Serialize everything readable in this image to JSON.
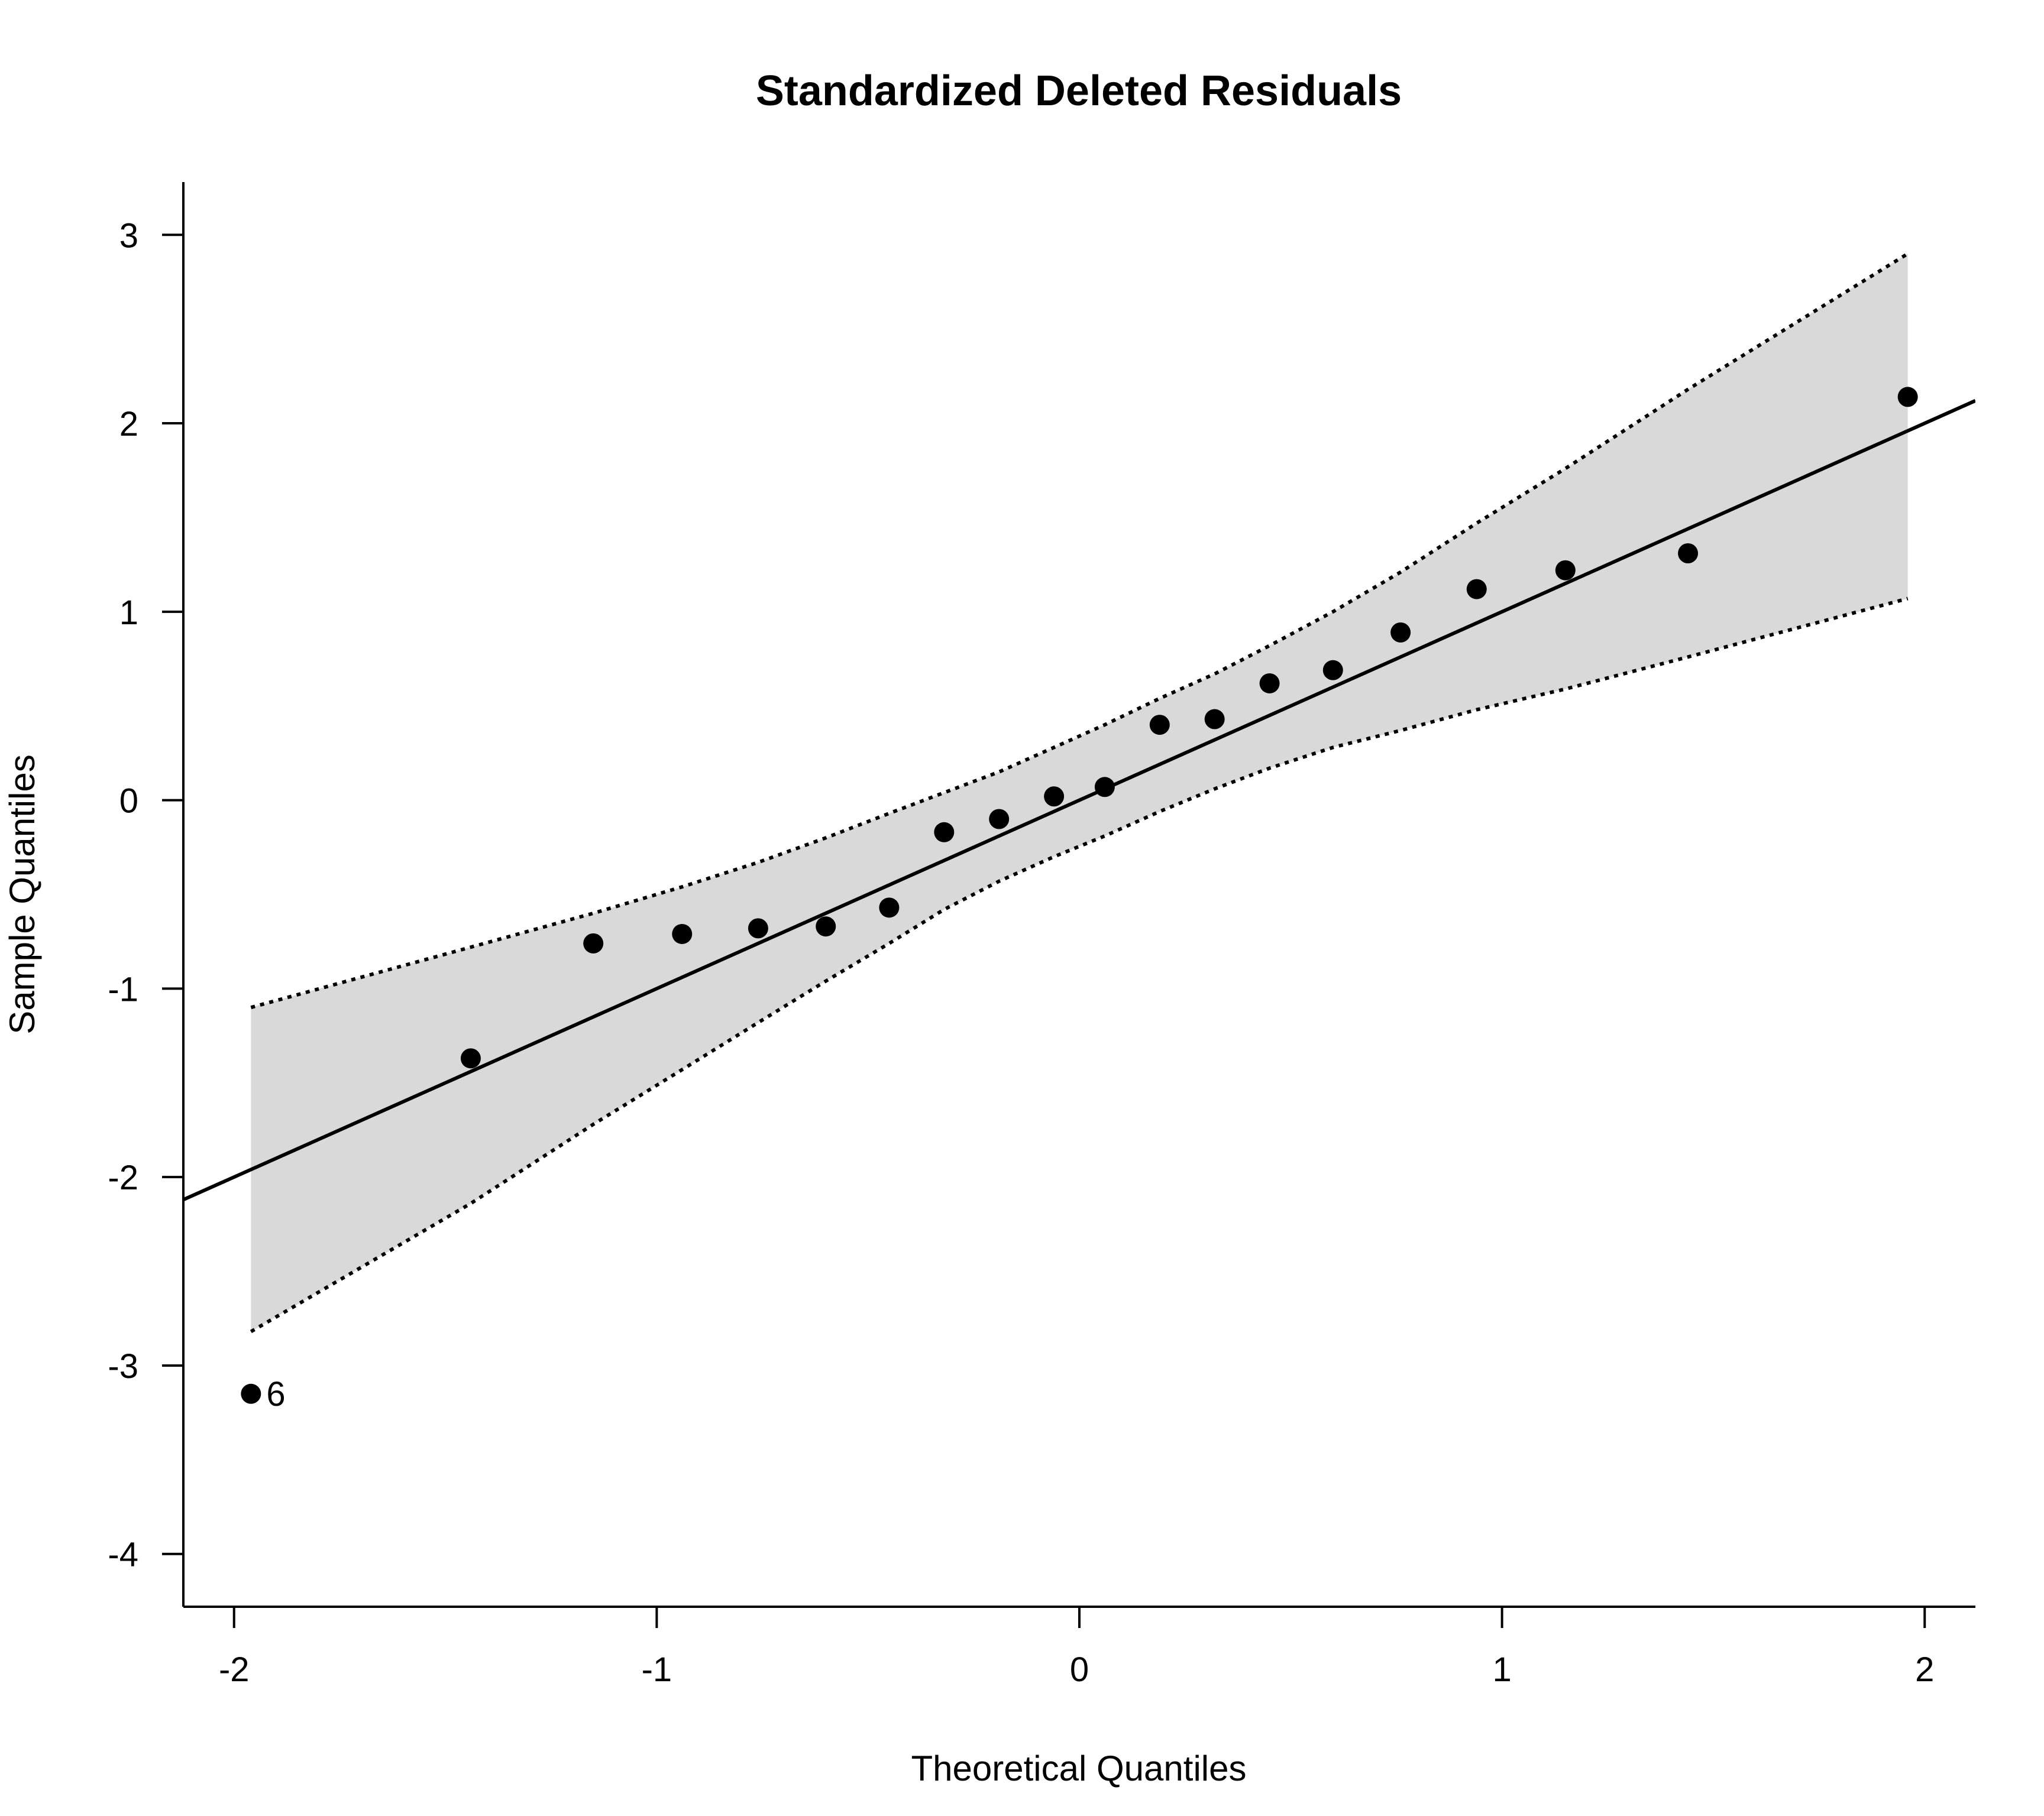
{
  "chart_data": {
    "type": "scatter",
    "title": "Standardized Deleted Residuals",
    "xlabel": "Theoretical Quantiles",
    "ylabel": "Sample Quantiles",
    "xlim": [
      -2.12,
      2.12
    ],
    "ylim": [
      -4.28,
      3.28
    ],
    "x_ticks": [
      -2,
      -1,
      0,
      1,
      2
    ],
    "x_tick_labels": [
      "-2",
      "-1",
      "0",
      "1",
      "2"
    ],
    "y_ticks": [
      -4,
      -3,
      -2,
      -1,
      0,
      1,
      2,
      3
    ],
    "y_tick_labels": [
      "-4",
      "-3",
      "-2",
      "-1",
      "0",
      "1",
      "2",
      "3"
    ],
    "grid": false,
    "points": [
      {
        "x": -1.96,
        "y": -3.15,
        "label": "6"
      },
      {
        "x": -1.44,
        "y": -1.37
      },
      {
        "x": -1.15,
        "y": -0.76
      },
      {
        "x": -0.94,
        "y": -0.71
      },
      {
        "x": -0.76,
        "y": -0.68
      },
      {
        "x": -0.6,
        "y": -0.67
      },
      {
        "x": -0.45,
        "y": -0.57
      },
      {
        "x": -0.32,
        "y": -0.17
      },
      {
        "x": -0.19,
        "y": -0.1
      },
      {
        "x": -0.06,
        "y": 0.02
      },
      {
        "x": 0.06,
        "y": 0.07
      },
      {
        "x": 0.19,
        "y": 0.4
      },
      {
        "x": 0.32,
        "y": 0.43
      },
      {
        "x": 0.45,
        "y": 0.62
      },
      {
        "x": 0.6,
        "y": 0.69
      },
      {
        "x": 0.76,
        "y": 0.89
      },
      {
        "x": 0.94,
        "y": 1.12
      },
      {
        "x": 1.15,
        "y": 1.22
      },
      {
        "x": 1.44,
        "y": 1.31
      },
      {
        "x": 1.96,
        "y": 2.14
      }
    ],
    "reference_line": {
      "intercept": 0.0,
      "slope": 1.0
    },
    "confidence_band": {
      "x": [
        -1.96,
        -1.44,
        -1.15,
        -0.94,
        -0.76,
        -0.6,
        -0.45,
        -0.32,
        -0.19,
        -0.06,
        0.06,
        0.19,
        0.32,
        0.45,
        0.6,
        0.76,
        0.94,
        1.15,
        1.44,
        1.96
      ],
      "upper": [
        -1.1,
        -0.78,
        -0.6,
        -0.46,
        -0.33,
        -0.2,
        -0.07,
        0.04,
        0.15,
        0.28,
        0.4,
        0.54,
        0.67,
        0.82,
        1.0,
        1.21,
        1.47,
        1.76,
        2.18,
        2.9
      ],
      "lower": [
        -2.82,
        -2.14,
        -1.72,
        -1.43,
        -1.18,
        -0.96,
        -0.76,
        -0.58,
        -0.43,
        -0.3,
        -0.19,
        -0.06,
        0.06,
        0.17,
        0.28,
        0.37,
        0.48,
        0.59,
        0.76,
        1.07
      ]
    },
    "colors": {
      "points": "#000000",
      "reference_line": "#000000",
      "band_fill": "#d9d9d9",
      "band_border": "#000000"
    }
  }
}
